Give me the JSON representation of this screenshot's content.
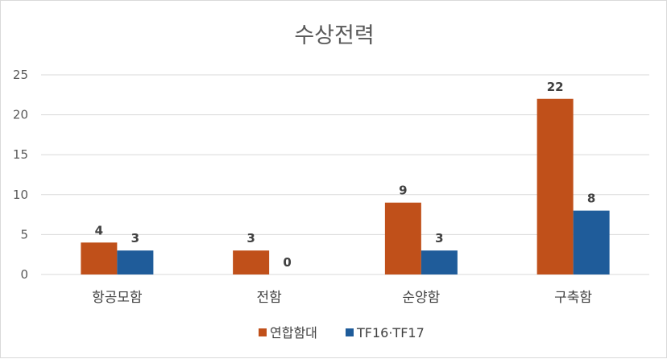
{
  "chart_data": {
    "type": "bar",
    "title": "수상전력",
    "categories": [
      "항공모함",
      "전함",
      "순양함",
      "구축함"
    ],
    "series": [
      {
        "name": "연합함대",
        "values": [
          4,
          3,
          9,
          22
        ],
        "color": "#c0504d"
      },
      {
        "name": "TF16·TF17",
        "values": [
          3,
          0,
          3,
          8
        ],
        "color": "#1f5c99"
      }
    ],
    "ylim": [
      0,
      25
    ],
    "yticks": [
      0,
      5,
      10,
      15,
      20,
      25
    ],
    "grid": true,
    "legend_position": "bottom"
  },
  "colors": {
    "series_1": "#c0501a",
    "series_2": "#1f5c9a",
    "grid": "#d9d9d9",
    "text": "#595959"
  }
}
